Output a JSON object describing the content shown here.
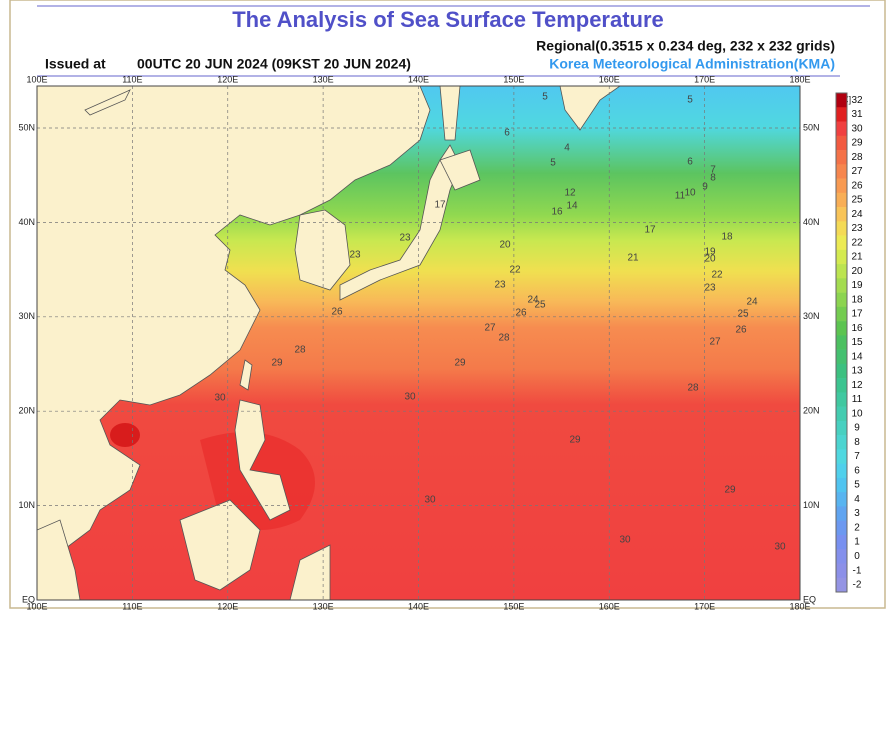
{
  "header": {
    "title": "The Analysis of Sea Surface Temperature",
    "regional": "Regional(0.3515 x 0.234 deg, 232 x 232 grids)",
    "issued_label": "Issued at",
    "issued_time": "00UTC 20 JUN 2024 (09KST 20 JUN 2024)",
    "agency": "Korea Meteorological Administration(KMA)"
  },
  "map": {
    "lon_labels": [
      "100E",
      "110E",
      "120E",
      "130E",
      "140E",
      "150E",
      "160E",
      "170E",
      "180E"
    ],
    "lat_labels": [
      "50N",
      "40N",
      "30N",
      "20N",
      "10N",
      "EQ"
    ]
  },
  "colorbar": {
    "unit": "[℃]",
    "levels": [
      32,
      31,
      30,
      29,
      28,
      27,
      26,
      25,
      24,
      23,
      22,
      21,
      20,
      19,
      18,
      17,
      16,
      15,
      14,
      13,
      12,
      11,
      10,
      9,
      8,
      7,
      6,
      5,
      4,
      3,
      2,
      1,
      0,
      -1,
      -2
    ],
    "colors": [
      "#b00010",
      "#e02020",
      "#f04040",
      "#f25a40",
      "#f47248",
      "#f6864e",
      "#f89a52",
      "#f8ae56",
      "#f8c458",
      "#f4da56",
      "#ecea54",
      "#d4ea50",
      "#bce450",
      "#a4dc50",
      "#8cd450",
      "#74cc50",
      "#5cc450",
      "#4cc060",
      "#44c070",
      "#3cc080",
      "#3cc490",
      "#40c8a0",
      "#44ccb0",
      "#48d0c0",
      "#4cd4d0",
      "#50d8e0",
      "#50d0ec",
      "#50c4f0",
      "#58b4f0",
      "#60a4f0",
      "#6c98f0",
      "#7890f0",
      "#8490ec",
      "#8c90e8",
      "#9494e4"
    ]
  },
  "contour_labels": [
    5,
    5,
    6,
    4,
    5,
    6,
    7,
    8,
    9,
    10,
    11,
    12,
    14,
    16,
    17,
    17,
    18,
    19,
    20,
    20,
    21,
    22,
    22,
    23,
    23,
    23,
    23,
    24,
    24,
    25,
    25,
    26,
    26,
    26,
    27,
    27,
    28,
    28,
    28,
    29,
    29,
    29,
    29,
    30,
    30,
    30,
    30,
    30
  ]
}
